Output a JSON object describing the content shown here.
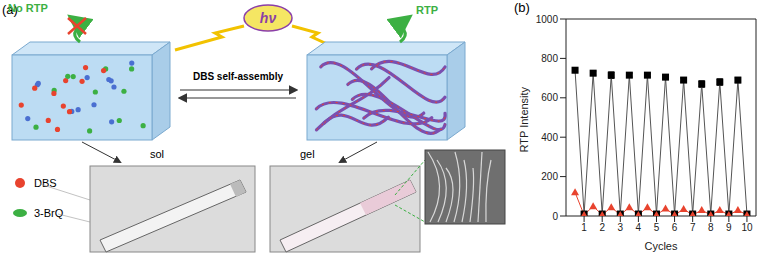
{
  "diagram": {
    "panel_label": "(a)",
    "light": "hν",
    "process": "DBS self-assembly",
    "left_state": {
      "label": "sol",
      "emission": "No RTP"
    },
    "right_state": {
      "label": "gel",
      "emission": "RTP"
    },
    "legend": [
      {
        "label": "DBS",
        "color": "#e8432e"
      },
      {
        "label": "3-BrQ",
        "color": "#3cb043"
      }
    ]
  },
  "chart_data": {
    "panel_label": "(b)",
    "type": "line",
    "x_label": "Cycles",
    "y_label": "RTP Intensity",
    "x": [
      0.5,
      1,
      1.5,
      2,
      2.5,
      3,
      3.5,
      4,
      4.5,
      5,
      5.5,
      6,
      6.5,
      7,
      7.5,
      8,
      8.5,
      9,
      9.5,
      10
    ],
    "series": [
      {
        "color": "#000000",
        "marker": "square",
        "values": [
          740,
          10,
          725,
          10,
          715,
          10,
          715,
          10,
          715,
          10,
          705,
          10,
          690,
          10,
          670,
          10,
          680,
          10,
          690,
          10
        ],
        "errors": [
          8,
          3,
          10,
          3,
          15,
          3,
          10,
          3,
          8,
          3,
          8,
          3,
          10,
          3,
          15,
          3,
          15,
          3,
          12,
          3
        ]
      },
      {
        "color": "#e8432e",
        "marker": "triangle",
        "values": [
          120,
          5,
          50,
          5,
          45,
          5,
          45,
          5,
          45,
          5,
          38,
          5,
          35,
          5,
          30,
          5,
          30,
          5,
          30,
          5
        ]
      }
    ],
    "xlim": [
      0,
      10.5
    ],
    "xticks": [
      1,
      2,
      3,
      4,
      5,
      6,
      7,
      8,
      9,
      10
    ],
    "ylim": [
      0,
      1000
    ],
    "yticks": [
      0,
      200,
      400,
      600,
      800,
      1000
    ],
    "grid": false
  }
}
